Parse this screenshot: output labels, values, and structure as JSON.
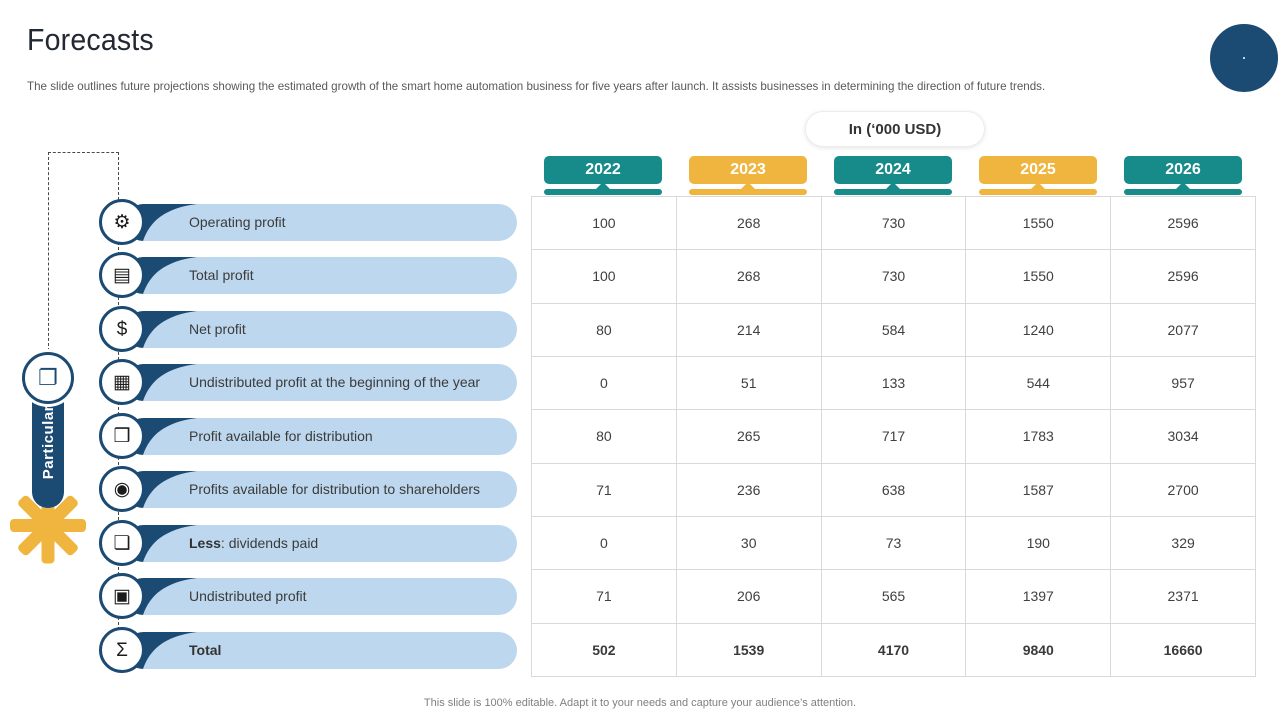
{
  "header": {
    "title": "Forecasts",
    "subtitle": "The slide outlines future projections showing the estimated growth of the smart home automation business for five years after launch. It assists businesses in determining the direction of future trends."
  },
  "units_badge": "In (‘000 USD)",
  "footer": "This slide is 100% editable. Adapt it to your needs and capture your audience’s attention.",
  "colors": {
    "navy": "#1B4A73",
    "teal": "#178A8A",
    "amber": "#F0B53E",
    "light_blue": "#BDD7EE",
    "grid_line": "#D9D9D9"
  },
  "left_panel": {
    "axis_label": "Particular",
    "axis_icon": "documents-icon",
    "axis_icon_glyph": "❐"
  },
  "years": [
    {
      "label": "2022",
      "color_key": "teal"
    },
    {
      "label": "2023",
      "color_key": "amber"
    },
    {
      "label": "2024",
      "color_key": "teal"
    },
    {
      "label": "2025",
      "color_key": "amber"
    },
    {
      "label": "2026",
      "color_key": "teal"
    }
  ],
  "rows": [
    {
      "icon": "gears-icon",
      "glyph": "⚙",
      "label_parts": [
        {
          "text": "Operating profit",
          "bold": false
        }
      ],
      "bold_values": false,
      "values": [
        "100",
        "268",
        "730",
        "1550",
        "2596"
      ]
    },
    {
      "icon": "cash-stack-icon",
      "glyph": "▤",
      "label_parts": [
        {
          "text": "Total profit",
          "bold": false
        }
      ],
      "bold_values": false,
      "values": [
        "100",
        "268",
        "730",
        "1550",
        "2596"
      ]
    },
    {
      "icon": "money-bag-icon",
      "glyph": "$",
      "label_parts": [
        {
          "text": "Net profit",
          "bold": false
        }
      ],
      "bold_values": false,
      "values": [
        "80",
        "214",
        "584",
        "1240",
        "2077"
      ]
    },
    {
      "icon": "calendar-icon",
      "glyph": "▦",
      "label_parts": [
        {
          "text": "Undistributed profit at the beginning of the year",
          "bold": false
        }
      ],
      "bold_values": false,
      "values": [
        "0",
        "51",
        "133",
        "544",
        "957"
      ]
    },
    {
      "icon": "coins-document-icon",
      "glyph": "❒",
      "label_parts": [
        {
          "text": "Profit available for distribution",
          "bold": false
        }
      ],
      "bold_values": false,
      "values": [
        "80",
        "265",
        "717",
        "1783",
        "3034"
      ]
    },
    {
      "icon": "money-bag-coins-icon",
      "glyph": "◉",
      "label_parts": [
        {
          "text": "Profits available for distribution to shareholders",
          "bold": false
        }
      ],
      "bold_values": false,
      "values": [
        "71",
        "236",
        "638",
        "1587",
        "2700"
      ]
    },
    {
      "icon": "document-icon",
      "glyph": "❏",
      "label_parts": [
        {
          "text": "Less",
          "bold": true
        },
        {
          "text": ": dividends paid",
          "bold": false
        }
      ],
      "bold_values": false,
      "values": [
        "0",
        "30",
        "73",
        "190",
        "329"
      ]
    },
    {
      "icon": "presentation-board-icon",
      "glyph": "▣",
      "label_parts": [
        {
          "text": "Undistributed profit",
          "bold": false
        }
      ],
      "bold_values": false,
      "values": [
        "71",
        "206",
        "565",
        "1397",
        "2371"
      ]
    },
    {
      "icon": "ledger-total-icon",
      "glyph": "Σ",
      "label_parts": [
        {
          "text": "Total",
          "bold": true
        }
      ],
      "bold_values": true,
      "values": [
        "502",
        "1539",
        "4170",
        "9840",
        "16660"
      ]
    }
  ]
}
